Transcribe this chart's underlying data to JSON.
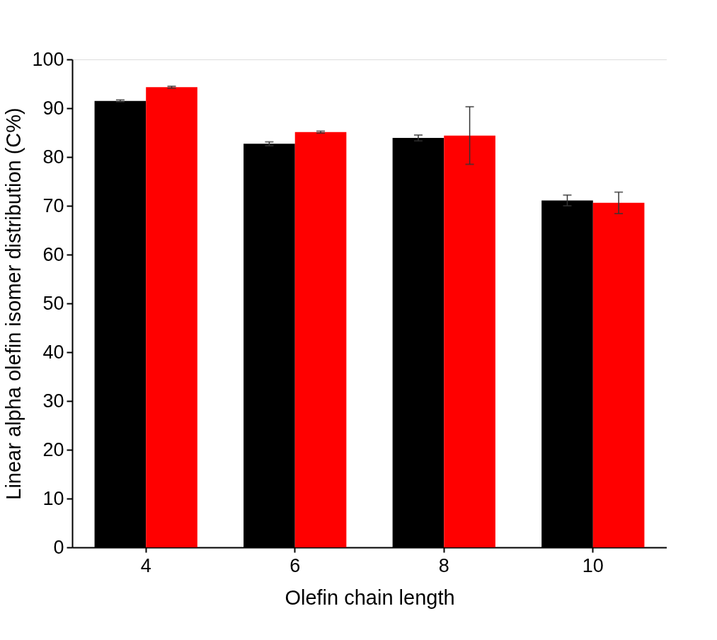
{
  "chart_data": {
    "type": "bar",
    "xlabel": "Olefin chain length",
    "ylabel": "Linear alpha olefin isomer distribution (C%)",
    "categories": [
      "4",
      "6",
      "8",
      "10"
    ],
    "series": [
      {
        "color": "#000000",
        "values": [
          91.5,
          82.7,
          83.9,
          71.1
        ],
        "errors": [
          0.2,
          0.4,
          0.6,
          1.1
        ]
      },
      {
        "color": "#ff0000",
        "values": [
          94.3,
          85.1,
          84.4,
          70.6
        ],
        "errors": [
          0.2,
          0.2,
          5.9,
          2.2
        ]
      }
    ],
    "ylim": [
      0,
      100
    ],
    "yticks": [
      0,
      10,
      20,
      30,
      40,
      50,
      60,
      70,
      80,
      90,
      100
    ],
    "grid": false
  }
}
